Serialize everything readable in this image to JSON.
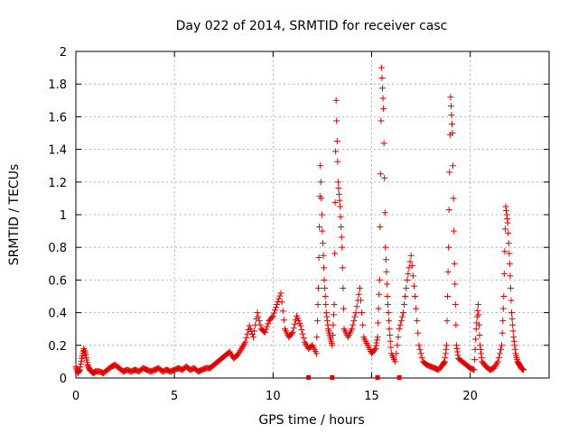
{
  "chart_data": {
    "type": "scatter",
    "title": "Day 022 of 2014, SRMTID for receiver casc",
    "xlabel": "GPS time / hours",
    "ylabel": "SRMTID / TECUs",
    "xlim": [
      0,
      24
    ],
    "ylim": [
      0,
      2
    ],
    "xticks": [
      0,
      5,
      10,
      15,
      20
    ],
    "yticks": [
      0,
      0.2,
      0.4,
      0.6,
      0.8,
      1,
      1.2,
      1.4,
      1.6,
      1.8,
      2
    ],
    "grid": true,
    "series": [
      {
        "name": "SRMTID",
        "color": "#e00000",
        "marker": "+",
        "x": [
          0.0,
          0.1,
          0.2,
          0.3,
          0.4,
          0.5,
          0.6,
          0.7,
          0.8,
          0.9,
          1.0,
          1.2,
          1.4,
          1.6,
          1.8,
          2.0,
          2.2,
          2.4,
          2.6,
          2.8,
          3.0,
          3.2,
          3.4,
          3.6,
          3.8,
          4.0,
          4.2,
          4.4,
          4.6,
          4.8,
          5.0,
          5.2,
          5.4,
          5.6,
          5.8,
          6.0,
          6.2,
          6.4,
          6.6,
          6.8,
          7.0,
          7.2,
          7.4,
          7.6,
          7.8,
          8.0,
          8.2,
          8.4,
          8.6,
          8.8,
          9.0,
          9.2,
          9.4,
          9.6,
          9.8,
          10.0,
          10.2,
          10.4,
          10.6,
          10.8,
          11.0,
          11.2,
          11.4,
          11.6,
          11.8,
          12.0,
          12.2,
          12.3,
          12.4,
          12.5,
          12.6,
          12.7,
          12.8,
          12.9,
          13.0,
          13.1,
          13.2,
          13.3,
          13.4,
          13.5,
          13.6,
          13.8,
          14.0,
          14.2,
          14.4,
          14.6,
          14.8,
          15.0,
          15.2,
          15.3,
          15.4,
          15.5,
          15.6,
          15.7,
          15.8,
          15.9,
          16.0,
          16.2,
          16.4,
          16.6,
          16.8,
          17.0,
          17.2,
          17.4,
          17.6,
          17.8,
          18.0,
          18.2,
          18.4,
          18.6,
          18.7,
          18.8,
          18.9,
          19.0,
          19.1,
          19.2,
          19.3,
          19.4,
          19.6,
          19.8,
          20.0,
          20.2,
          20.3,
          20.4,
          20.5,
          20.6,
          20.8,
          21.0,
          21.2,
          21.4,
          21.6,
          21.7,
          21.8,
          21.9,
          22.0,
          22.1,
          22.2,
          22.3,
          22.4,
          22.5,
          22.6,
          22.7
        ],
        "y": [
          0.07,
          0.03,
          0.05,
          0.12,
          0.18,
          0.14,
          0.08,
          0.05,
          0.04,
          0.03,
          0.04,
          0.04,
          0.03,
          0.05,
          0.07,
          0.08,
          0.06,
          0.04,
          0.05,
          0.04,
          0.05,
          0.04,
          0.06,
          0.05,
          0.04,
          0.05,
          0.06,
          0.04,
          0.05,
          0.04,
          0.05,
          0.06,
          0.05,
          0.07,
          0.05,
          0.06,
          0.04,
          0.05,
          0.06,
          0.06,
          0.08,
          0.1,
          0.12,
          0.14,
          0.16,
          0.12,
          0.14,
          0.18,
          0.22,
          0.32,
          0.25,
          0.4,
          0.3,
          0.28,
          0.35,
          0.38,
          0.45,
          0.52,
          0.3,
          0.25,
          0.28,
          0.38,
          0.32,
          0.22,
          0.18,
          0.2,
          0.15,
          0.55,
          1.3,
          0.9,
          0.6,
          0.4,
          0.3,
          0.25,
          0.2,
          0.45,
          1.7,
          1.2,
          1.05,
          0.8,
          0.3,
          0.25,
          0.3,
          0.4,
          0.55,
          0.25,
          0.2,
          0.15,
          0.18,
          0.25,
          0.6,
          1.9,
          1.65,
          0.8,
          0.5,
          0.3,
          0.15,
          0.1,
          0.3,
          0.4,
          0.6,
          0.75,
          0.5,
          0.2,
          0.1,
          0.08,
          0.07,
          0.06,
          0.05,
          0.08,
          0.1,
          0.2,
          0.8,
          1.72,
          1.5,
          0.7,
          0.2,
          0.12,
          0.1,
          0.08,
          0.06,
          0.05,
          0.3,
          0.45,
          0.2,
          0.1,
          0.07,
          0.05,
          0.06,
          0.1,
          0.2,
          0.5,
          1.05,
          0.95,
          0.7,
          0.4,
          0.25,
          0.15,
          0.1,
          0.08,
          0.06,
          0.05
        ],
        "floor_markers_x": [
          11.8,
          13.0,
          15.3,
          16.4
        ]
      }
    ]
  }
}
